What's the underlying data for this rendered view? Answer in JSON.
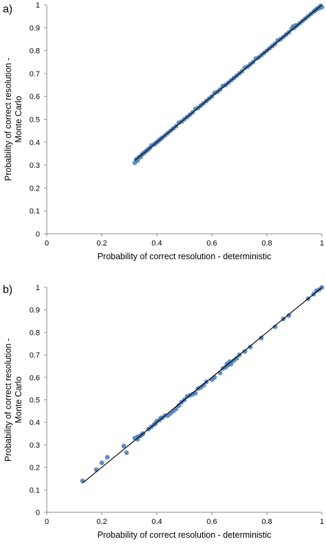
{
  "chart_data": [
    {
      "panel_label": "a)",
      "type": "scatter",
      "xlabel": "Probability of correct resolution - deterministic",
      "ylabel": [
        "Probability of correct resolution -",
        "Monte Carlo"
      ],
      "xlim": [
        0,
        1
      ],
      "ylim": [
        0,
        1
      ],
      "xticks": [
        0,
        0.2,
        0.4,
        0.6,
        0.8,
        1
      ],
      "xtick_labels": [
        "0",
        "0.2",
        "0.4",
        "0.6",
        "0.8",
        "1"
      ],
      "yticks": [
        0,
        0.1,
        0.2,
        0.3,
        0.4,
        0.5,
        0.6,
        0.7,
        0.8,
        0.9,
        1
      ],
      "ytick_labels": [
        "0",
        "0.1",
        "0.2",
        "0.3",
        "0.4",
        "0.5",
        "0.6",
        "0.7",
        "0.8",
        "0.9",
        "1"
      ],
      "grid": false,
      "legend": "none",
      "marker_color": "#4f81bd",
      "line_color": "#000000",
      "reference_line": {
        "x": [
          0.32,
          1.0
        ],
        "y": [
          0.32,
          1.0
        ]
      },
      "series": [
        {
          "points": [
            [
              0.32,
              0.31
            ],
            [
              0.325,
              0.325
            ],
            [
              0.33,
              0.32
            ],
            [
              0.335,
              0.335
            ],
            [
              0.34,
              0.335
            ],
            [
              0.345,
              0.345
            ],
            [
              0.35,
              0.35
            ],
            [
              0.355,
              0.355
            ],
            [
              0.36,
              0.36
            ],
            [
              0.365,
              0.365
            ],
            [
              0.37,
              0.37
            ],
            [
              0.375,
              0.375
            ],
            [
              0.38,
              0.385
            ],
            [
              0.39,
              0.39
            ],
            [
              0.395,
              0.395
            ],
            [
              0.4,
              0.4
            ],
            [
              0.405,
              0.405
            ],
            [
              0.41,
              0.41
            ],
            [
              0.415,
              0.415
            ],
            [
              0.42,
              0.42
            ],
            [
              0.43,
              0.43
            ],
            [
              0.44,
              0.44
            ],
            [
              0.45,
              0.45
            ],
            [
              0.46,
              0.46
            ],
            [
              0.47,
              0.47
            ],
            [
              0.48,
              0.485
            ],
            [
              0.49,
              0.49
            ],
            [
              0.5,
              0.5
            ],
            [
              0.51,
              0.51
            ],
            [
              0.52,
              0.52
            ],
            [
              0.53,
              0.53
            ],
            [
              0.54,
              0.545
            ],
            [
              0.55,
              0.55
            ],
            [
              0.56,
              0.56
            ],
            [
              0.57,
              0.57
            ],
            [
              0.58,
              0.58
            ],
            [
              0.59,
              0.59
            ],
            [
              0.6,
              0.6
            ],
            [
              0.61,
              0.615
            ],
            [
              0.62,
              0.62
            ],
            [
              0.63,
              0.63
            ],
            [
              0.64,
              0.645
            ],
            [
              0.65,
              0.65
            ],
            [
              0.66,
              0.66
            ],
            [
              0.67,
              0.67
            ],
            [
              0.68,
              0.68
            ],
            [
              0.69,
              0.69
            ],
            [
              0.7,
              0.7
            ],
            [
              0.71,
              0.71
            ],
            [
              0.72,
              0.725
            ],
            [
              0.73,
              0.73
            ],
            [
              0.74,
              0.74
            ],
            [
              0.75,
              0.75
            ],
            [
              0.76,
              0.765
            ],
            [
              0.77,
              0.77
            ],
            [
              0.78,
              0.78
            ],
            [
              0.79,
              0.79
            ],
            [
              0.8,
              0.8
            ],
            [
              0.81,
              0.81
            ],
            [
              0.82,
              0.82
            ],
            [
              0.83,
              0.83
            ],
            [
              0.84,
              0.845
            ],
            [
              0.85,
              0.85
            ],
            [
              0.86,
              0.86
            ],
            [
              0.87,
              0.87
            ],
            [
              0.88,
              0.88
            ],
            [
              0.89,
              0.895
            ],
            [
              0.9,
              0.9
            ],
            [
              0.91,
              0.91
            ],
            [
              0.92,
              0.92
            ],
            [
              0.93,
              0.93
            ],
            [
              0.94,
              0.94
            ],
            [
              0.95,
              0.95
            ],
            [
              0.96,
              0.96
            ],
            [
              0.97,
              0.97
            ],
            [
              0.98,
              0.98
            ],
            [
              0.99,
              0.985
            ],
            [
              1.0,
              0.99
            ],
            [
              0.895,
              0.905
            ],
            [
              0.905,
              0.91
            ],
            [
              0.985,
              0.985
            ],
            [
              0.975,
              0.975
            ],
            [
              0.995,
              0.995
            ]
          ]
        }
      ]
    },
    {
      "panel_label": "b)",
      "type": "scatter",
      "xlabel": "Probability of correct resolution - deterministic",
      "ylabel": [
        "Probability of correct resolution -",
        "Monte Carlo"
      ],
      "xlim": [
        0,
        1
      ],
      "ylim": [
        0,
        1
      ],
      "xticks": [
        0,
        0.2,
        0.4,
        0.6,
        0.8,
        1
      ],
      "xtick_labels": [
        "0",
        "0.2",
        "0.4",
        "0.6",
        "0.8",
        "1"
      ],
      "yticks": [
        0,
        0.1,
        0.2,
        0.3,
        0.4,
        0.5,
        0.6,
        0.7,
        0.8,
        0.9,
        1
      ],
      "ytick_labels": [
        "0",
        "0.1",
        "0.2",
        "0.3",
        "0.4",
        "0.5",
        "0.6",
        "0.7",
        "0.8",
        "0.9",
        "1"
      ],
      "grid": false,
      "legend": "none",
      "marker_color": "#4f81bd",
      "line_color": "#000000",
      "reference_line": {
        "x": [
          0.13,
          1.0
        ],
        "y": [
          0.13,
          1.0
        ]
      },
      "series": [
        {
          "points": [
            [
              0.13,
              0.14
            ],
            [
              0.18,
              0.19
            ],
            [
              0.2,
              0.22
            ],
            [
              0.22,
              0.245
            ],
            [
              0.28,
              0.295
            ],
            [
              0.29,
              0.265
            ],
            [
              0.32,
              0.33
            ],
            [
              0.33,
              0.335
            ],
            [
              0.34,
              0.34
            ],
            [
              0.35,
              0.35
            ],
            [
              0.37,
              0.37
            ],
            [
              0.38,
              0.38
            ],
            [
              0.39,
              0.39
            ],
            [
              0.4,
              0.405
            ],
            [
              0.41,
              0.41
            ],
            [
              0.42,
              0.42
            ],
            [
              0.43,
              0.43
            ],
            [
              0.45,
              0.44
            ],
            [
              0.46,
              0.45
            ],
            [
              0.47,
              0.46
            ],
            [
              0.48,
              0.475
            ],
            [
              0.49,
              0.49
            ],
            [
              0.5,
              0.5
            ],
            [
              0.52,
              0.52
            ],
            [
              0.54,
              0.53
            ],
            [
              0.55,
              0.55
            ],
            [
              0.56,
              0.555
            ],
            [
              0.57,
              0.565
            ],
            [
              0.58,
              0.58
            ],
            [
              0.6,
              0.59
            ],
            [
              0.61,
              0.6
            ],
            [
              0.63,
              0.62
            ],
            [
              0.65,
              0.645
            ],
            [
              0.66,
              0.655
            ],
            [
              0.67,
              0.66
            ],
            [
              0.68,
              0.675
            ],
            [
              0.69,
              0.685
            ],
            [
              0.7,
              0.7
            ],
            [
              0.72,
              0.715
            ],
            [
              0.74,
              0.735
            ],
            [
              0.78,
              0.775
            ],
            [
              0.83,
              0.825
            ],
            [
              0.86,
              0.86
            ],
            [
              0.88,
              0.875
            ],
            [
              0.95,
              0.95
            ],
            [
              0.97,
              0.97
            ],
            [
              0.98,
              0.985
            ],
            [
              0.99,
              0.99
            ],
            [
              1.0,
              1.0
            ],
            [
              0.33,
              0.325
            ],
            [
              0.345,
              0.345
            ],
            [
              0.395,
              0.395
            ],
            [
              0.415,
              0.42
            ],
            [
              0.44,
              0.43
            ],
            [
              0.51,
              0.515
            ],
            [
              0.53,
              0.525
            ],
            [
              0.64,
              0.64
            ],
            [
              0.655,
              0.66
            ],
            [
              0.665,
              0.67
            ]
          ]
        }
      ]
    }
  ]
}
